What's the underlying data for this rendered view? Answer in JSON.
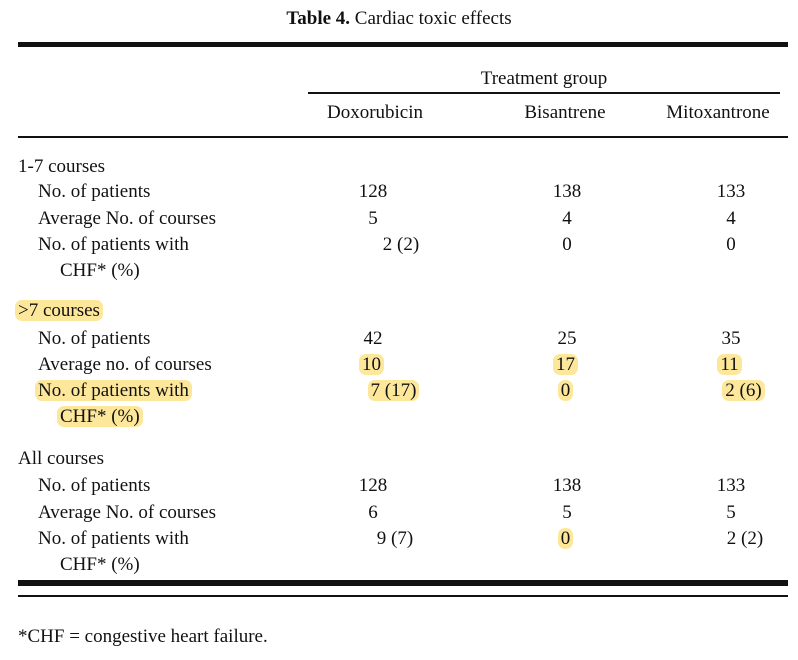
{
  "title": {
    "label": "Table 4.",
    "text": "Cardiac toxic effects"
  },
  "header": {
    "group": "Treatment group",
    "columns": [
      "Doxorubicin",
      "Bisantrene",
      "Mitoxantrone"
    ]
  },
  "sections": [
    {
      "name": "1-7 courses",
      "rows": [
        {
          "label": "No. of patients",
          "values": [
            "128",
            "138",
            "133"
          ]
        },
        {
          "label": "Average No. of courses",
          "values": [
            "5",
            "4",
            "4"
          ]
        },
        {
          "label": "No. of patients with",
          "label2": "CHF* (%)",
          "values": [
            "2 (2)",
            "0",
            "0"
          ]
        }
      ]
    },
    {
      "name": ">7 courses",
      "rows": [
        {
          "label": "No. of patients",
          "values": [
            "42",
            "25",
            "35"
          ]
        },
        {
          "label": "Average no. of courses",
          "values": [
            "10",
            "17",
            "11"
          ]
        },
        {
          "label": "No. of patients with",
          "label2": "CHF* (%)",
          "values": [
            "7 (17)",
            "0",
            "2 (6)"
          ]
        }
      ]
    },
    {
      "name": "All courses",
      "rows": [
        {
          "label": "No. of patients",
          "values": [
            "128",
            "138",
            "133"
          ]
        },
        {
          "label": "Average No. of courses",
          "values": [
            "6",
            "5",
            "5"
          ]
        },
        {
          "label": "No. of patients with",
          "label2": "CHF* (%)",
          "values": [
            "9 (7)",
            "0",
            "2 (2)"
          ]
        }
      ]
    }
  ],
  "footnote": "*CHF = congestive heart failure.",
  "highlight_color": "#fde79a"
}
